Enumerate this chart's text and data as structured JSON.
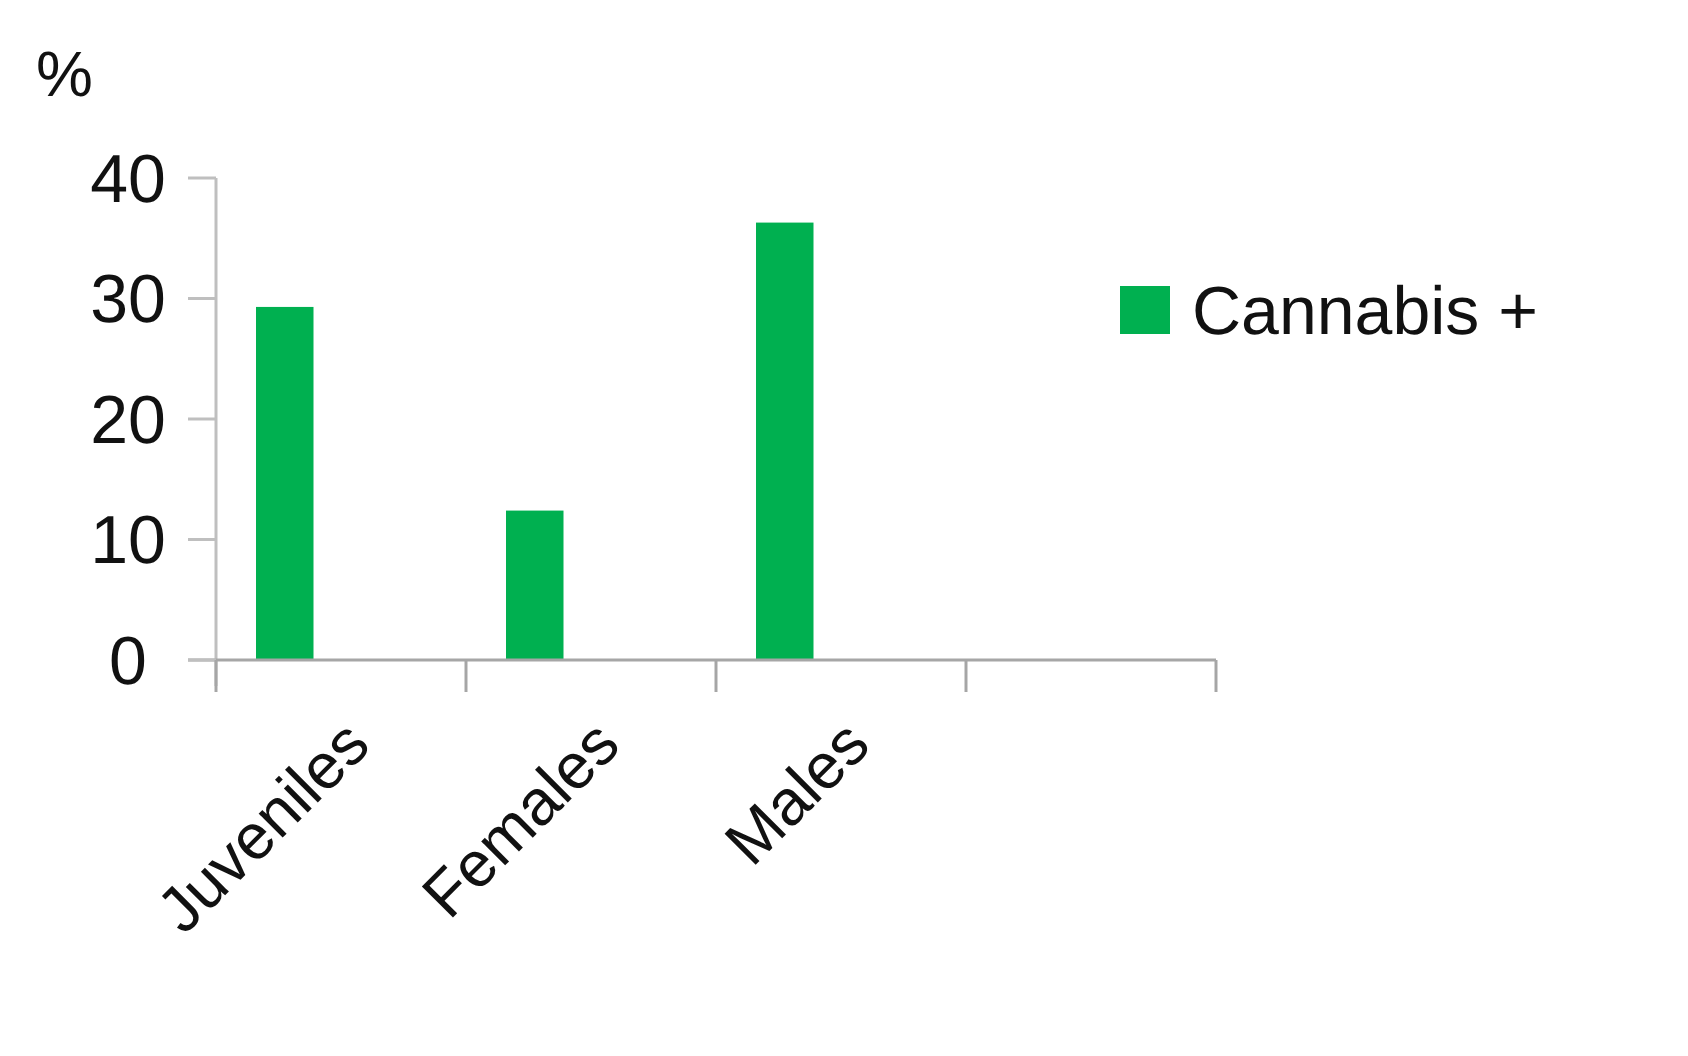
{
  "chart_data": {
    "type": "bar",
    "ylabel": "%",
    "categories": [
      "Juveniles",
      "Females",
      "Males",
      null
    ],
    "series": [
      {
        "name": "Cannabis +",
        "color": "#00b050",
        "values": [
          29.3,
          12.4,
          36.3,
          null
        ]
      }
    ],
    "ylim": [
      0,
      40
    ],
    "yticks": [
      0,
      10,
      20,
      30,
      40
    ],
    "grid": false,
    "legend": "right"
  }
}
